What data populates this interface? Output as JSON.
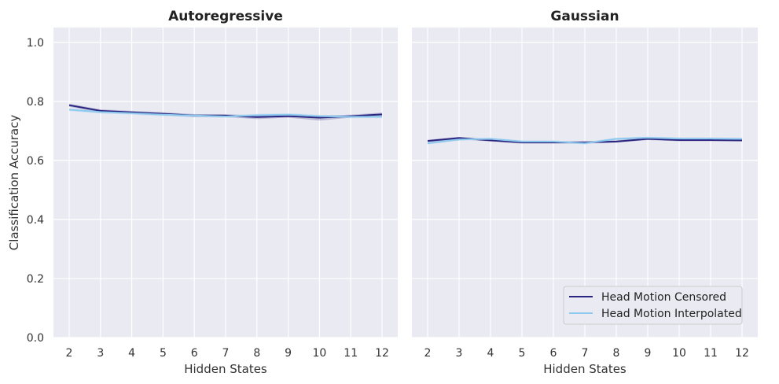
{
  "chart_data": [
    {
      "type": "line",
      "title": "Autoregressive",
      "xlabel": "Hidden States",
      "ylabel": "Classification Accuracy",
      "x": [
        2,
        3,
        4,
        5,
        6,
        7,
        8,
        9,
        10,
        11,
        12
      ],
      "xticks": [
        "2",
        "3",
        "4",
        "5",
        "6",
        "7",
        "8",
        "9",
        "10",
        "11",
        "12"
      ],
      "ylim": [
        0,
        1.05
      ],
      "yticks": [
        "0.0",
        "0.2",
        "0.4",
        "0.6",
        "0.8",
        "1.0"
      ],
      "ytick_values": [
        0,
        0.2,
        0.4,
        0.6,
        0.8,
        1.0
      ],
      "grid": true,
      "series": [
        {
          "name": "Head Motion Censored",
          "color": "#2a2580",
          "values": [
            0.787,
            0.768,
            0.763,
            0.758,
            0.752,
            0.752,
            0.747,
            0.75,
            0.745,
            0.75,
            0.756
          ],
          "band_low": [
            0.782,
            0.763,
            0.758,
            0.753,
            0.747,
            0.747,
            0.74,
            0.745,
            0.735,
            0.745,
            0.75
          ],
          "band_high": [
            0.792,
            0.773,
            0.768,
            0.763,
            0.757,
            0.757,
            0.752,
            0.755,
            0.752,
            0.755,
            0.762
          ]
        },
        {
          "name": "Head Motion Interpolated",
          "color": "#8ec9ee",
          "values": [
            0.772,
            0.764,
            0.76,
            0.755,
            0.752,
            0.749,
            0.753,
            0.755,
            0.75,
            0.748,
            0.748
          ],
          "band_low": [
            0.767,
            0.759,
            0.755,
            0.75,
            0.747,
            0.744,
            0.748,
            0.75,
            0.745,
            0.743,
            0.743
          ],
          "band_high": [
            0.777,
            0.769,
            0.765,
            0.76,
            0.757,
            0.754,
            0.758,
            0.76,
            0.755,
            0.753,
            0.753
          ]
        }
      ]
    },
    {
      "type": "line",
      "title": "Gaussian",
      "xlabel": "Hidden States",
      "ylabel": "",
      "x": [
        2,
        3,
        4,
        5,
        6,
        7,
        8,
        9,
        10,
        11,
        12
      ],
      "xticks": [
        "2",
        "3",
        "4",
        "5",
        "6",
        "7",
        "8",
        "9",
        "10",
        "11",
        "12"
      ],
      "ylim": [
        0,
        1.05
      ],
      "yticks": [
        "0.0",
        "0.2",
        "0.4",
        "0.6",
        "0.8",
        "1.0"
      ],
      "ytick_values": [
        0,
        0.2,
        0.4,
        0.6,
        0.8,
        1.0
      ],
      "grid": true,
      "legend_position": "bottom-right",
      "series": [
        {
          "name": "Head Motion Censored",
          "color": "#2a2580",
          "values": [
            0.666,
            0.676,
            0.668,
            0.661,
            0.661,
            0.661,
            0.664,
            0.673,
            0.669,
            0.669,
            0.668
          ],
          "band_low": [
            0.662,
            0.672,
            0.664,
            0.657,
            0.657,
            0.657,
            0.66,
            0.669,
            0.665,
            0.665,
            0.664
          ],
          "band_high": [
            0.67,
            0.68,
            0.672,
            0.665,
            0.665,
            0.665,
            0.668,
            0.677,
            0.673,
            0.673,
            0.672
          ]
        },
        {
          "name": "Head Motion Interpolated",
          "color": "#8ec9ee",
          "values": [
            0.658,
            0.671,
            0.673,
            0.664,
            0.664,
            0.658,
            0.673,
            0.677,
            0.674,
            0.674,
            0.673
          ],
          "band_low": [
            0.654,
            0.667,
            0.669,
            0.66,
            0.66,
            0.654,
            0.669,
            0.673,
            0.67,
            0.67,
            0.669
          ],
          "band_high": [
            0.662,
            0.675,
            0.677,
            0.668,
            0.668,
            0.662,
            0.677,
            0.681,
            0.678,
            0.678,
            0.677
          ]
        }
      ]
    }
  ]
}
